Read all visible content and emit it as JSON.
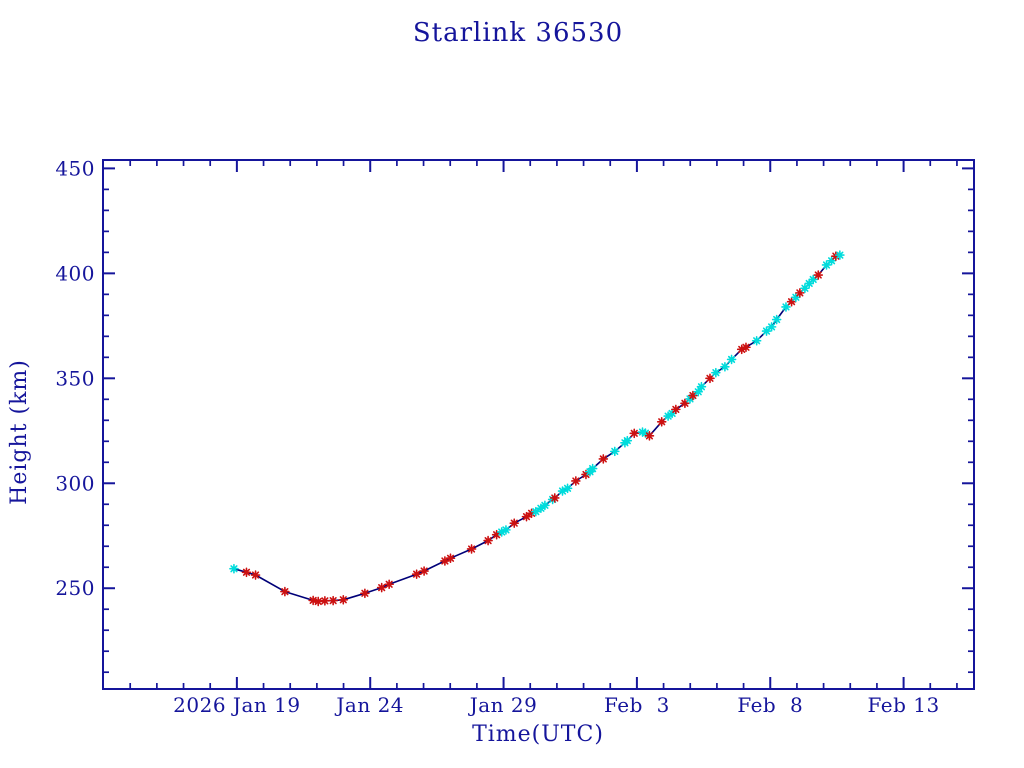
{
  "colors": {
    "frame": "#15159B",
    "text": "#15159B",
    "line": "#000078",
    "marker_red": "#CC1111",
    "marker_cyan": "#00DCDC",
    "background": "#FFFFFF"
  },
  "chart_data": {
    "type": "line",
    "title": "Starlink 36530",
    "xlabel": "Time(UTC)",
    "ylabel": "Height (km)",
    "x_unit": "days since 2026 Jan 19 00:00 UTC",
    "xlim": [
      -5.02,
      27.64
    ],
    "ylim": [
      202,
      454
    ],
    "grid": false,
    "legend": "none",
    "x_major_ticks": [
      {
        "t": 0,
        "label": "2026 Jan 19"
      },
      {
        "t": 5,
        "label": "Jan 24"
      },
      {
        "t": 10,
        "label": "Jan 29"
      },
      {
        "t": 15,
        "label": "Feb  3"
      },
      {
        "t": 20,
        "label": "Feb  8"
      },
      {
        "t": 25,
        "label": "Feb 13"
      }
    ],
    "x_minor_step": 1,
    "y_major_ticks": [
      250,
      300,
      350,
      400,
      450
    ],
    "y_minor_step": 10,
    "marker_styles": {
      "r": "red asterisk",
      "c": "cyan asterisk"
    },
    "points": [
      [
        -0.11,
        259.3,
        "c"
      ],
      [
        0.36,
        257.6,
        "r"
      ],
      [
        0.7,
        256.3,
        "r"
      ],
      [
        1.8,
        248.4,
        "r"
      ],
      [
        2.86,
        244.2,
        "r"
      ],
      [
        3.05,
        243.7,
        "r"
      ],
      [
        3.3,
        244.0,
        "r"
      ],
      [
        3.61,
        244.1,
        "r"
      ],
      [
        3.99,
        244.5,
        "r"
      ],
      [
        4.8,
        247.6,
        "r"
      ],
      [
        5.43,
        250.3,
        "r"
      ],
      [
        5.71,
        251.9,
        "r"
      ],
      [
        6.74,
        256.7,
        "r"
      ],
      [
        7.02,
        258.2,
        "r"
      ],
      [
        7.8,
        263.0,
        "r"
      ],
      [
        8.01,
        264.3,
        "r"
      ],
      [
        8.8,
        268.7,
        "r"
      ],
      [
        9.42,
        272.7,
        "r"
      ],
      [
        9.74,
        275.5,
        "r"
      ],
      [
        9.93,
        276.8,
        "c"
      ],
      [
        10.09,
        277.8,
        "c"
      ],
      [
        10.4,
        281.0,
        "r"
      ],
      [
        10.86,
        284.1,
        "r"
      ],
      [
        11.05,
        285.7,
        "r"
      ],
      [
        11.21,
        286.5,
        "c"
      ],
      [
        11.4,
        288.1,
        "c"
      ],
      [
        11.55,
        289.5,
        "c"
      ],
      [
        11.84,
        292.3,
        "c"
      ],
      [
        11.92,
        293.0,
        "r"
      ],
      [
        12.21,
        296.3,
        "c"
      ],
      [
        12.4,
        297.6,
        "c"
      ],
      [
        12.71,
        301.1,
        "r"
      ],
      [
        13.09,
        304.2,
        "r"
      ],
      [
        13.24,
        305.5,
        "c"
      ],
      [
        13.34,
        307.0,
        "c"
      ],
      [
        13.74,
        311.6,
        "r"
      ],
      [
        14.17,
        315.2,
        "c"
      ],
      [
        14.55,
        319.3,
        "c"
      ],
      [
        14.64,
        320.3,
        "c"
      ],
      [
        14.9,
        323.8,
        "r"
      ],
      [
        15.21,
        324.4,
        "c"
      ],
      [
        15.32,
        323.9,
        "c"
      ],
      [
        15.47,
        322.6,
        "r"
      ],
      [
        15.93,
        329.3,
        "r"
      ],
      [
        16.17,
        332.0,
        "c"
      ],
      [
        16.32,
        333.3,
        "c"
      ],
      [
        16.46,
        335.2,
        "r"
      ],
      [
        16.8,
        338.1,
        "r"
      ],
      [
        16.99,
        340.2,
        "c"
      ],
      [
        17.1,
        341.8,
        "r"
      ],
      [
        17.3,
        343.6,
        "c"
      ],
      [
        17.42,
        346.0,
        "c"
      ],
      [
        17.74,
        350.0,
        "r"
      ],
      [
        17.96,
        352.7,
        "c"
      ],
      [
        18.3,
        355.5,
        "c"
      ],
      [
        18.55,
        359.0,
        "c"
      ],
      [
        18.93,
        363.8,
        "r"
      ],
      [
        19.09,
        364.8,
        "r"
      ],
      [
        19.49,
        367.9,
        "c"
      ],
      [
        19.86,
        372.5,
        "c"
      ],
      [
        20.05,
        374.5,
        "c"
      ],
      [
        20.24,
        378.0,
        "c"
      ],
      [
        20.59,
        384.0,
        "c"
      ],
      [
        20.8,
        386.5,
        "r"
      ],
      [
        20.96,
        388.6,
        "c"
      ],
      [
        21.11,
        390.7,
        "r"
      ],
      [
        21.3,
        392.9,
        "c"
      ],
      [
        21.46,
        395.2,
        "c"
      ],
      [
        21.61,
        397.1,
        "c"
      ],
      [
        21.8,
        399.2,
        "r"
      ],
      [
        22.11,
        404.0,
        "c"
      ],
      [
        22.3,
        406.0,
        "c"
      ],
      [
        22.46,
        408.2,
        "r"
      ],
      [
        22.61,
        408.7,
        "c"
      ]
    ]
  }
}
